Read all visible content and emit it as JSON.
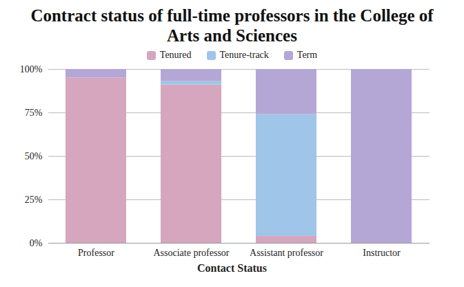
{
  "chart_data": {
    "type": "bar",
    "title": "Contract status of full-time professors in the College of Arts and Sciences",
    "x_label": "Contact Status",
    "categories": [
      "Professor",
      "Associate professor",
      "Assistant professor",
      "Instructor"
    ],
    "series": [
      {
        "name": "Tenured",
        "color": "#d5a6bd",
        "values": [
          95,
          91,
          4,
          0
        ]
      },
      {
        "name": "Tenure-track",
        "color": "#9fc5e8",
        "values": [
          0,
          2,
          70,
          0
        ]
      },
      {
        "name": "Term",
        "color": "#b4a7d6",
        "values": [
          5,
          7,
          26,
          100
        ]
      }
    ],
    "stacked": true,
    "ylim": [
      0,
      100
    ],
    "yticks": [
      {
        "value": 0,
        "label": "0%"
      },
      {
        "value": 25,
        "label": "25%"
      },
      {
        "value": 50,
        "label": "50%"
      },
      {
        "value": 75,
        "label": "75%"
      },
      {
        "value": 100,
        "label": "100%"
      }
    ],
    "grid": true,
    "legend": "top"
  }
}
